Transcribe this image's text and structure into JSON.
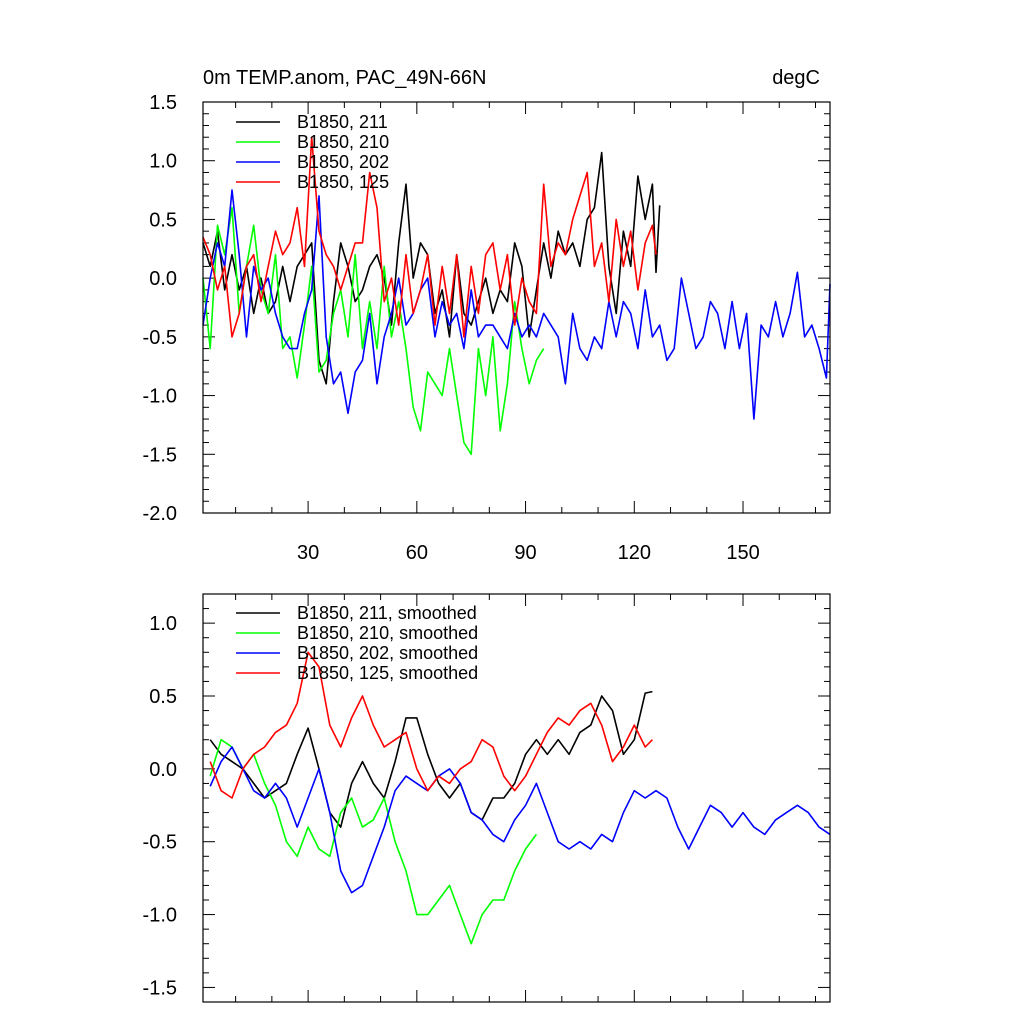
{
  "chart_data": [
    {
      "type": "line",
      "title": "0m TEMP.anom, PAC_49N-66N",
      "units": "degC",
      "xlabel": "",
      "ylabel": "",
      "xlim": [
        1,
        174
      ],
      "ylim": [
        -2.0,
        1.5
      ],
      "xticks": [
        30,
        60,
        90,
        120,
        150
      ],
      "xtick_labels": [
        "30",
        "60",
        "90",
        "120",
        "150"
      ],
      "yticks": [
        -2.0,
        -1.5,
        -1.0,
        -0.5,
        0.0,
        0.5,
        1.0,
        1.5
      ],
      "ytick_labels": [
        "-2.0",
        "-1.5",
        "-1.0",
        "-0.5",
        "0.0",
        "0.5",
        "1.0",
        "1.5"
      ],
      "legend_position": "top-left",
      "series": [
        {
          "name": "B1850, 211",
          "color": "#000000",
          "x": [
            1,
            3,
            5,
            7,
            9,
            11,
            13,
            15,
            17,
            19,
            21,
            23,
            25,
            27,
            29,
            31,
            33,
            35,
            37,
            39,
            41,
            43,
            45,
            47,
            49,
            51,
            53,
            55,
            57,
            59,
            61,
            63,
            65,
            67,
            69,
            71,
            73,
            75,
            77,
            79,
            81,
            83,
            85,
            87,
            89,
            91,
            93,
            95,
            97,
            99,
            101,
            103,
            105,
            107,
            109,
            111,
            113,
            115,
            117,
            119,
            121,
            123,
            125,
            126,
            127
          ],
          "values": [
            0.3,
            0.1,
            0.4,
            -0.1,
            0.2,
            -0.1,
            0.1,
            -0.3,
            0.0,
            -0.3,
            -0.2,
            0.1,
            -0.2,
            0.1,
            0.2,
            0.3,
            -0.7,
            -0.9,
            -0.2,
            0.3,
            0.1,
            -0.2,
            -0.1,
            0.1,
            0.2,
            0.0,
            -0.4,
            0.3,
            0.8,
            0.0,
            0.3,
            0.2,
            -0.3,
            -0.1,
            -0.5,
            0.2,
            -0.3,
            -0.4,
            -0.2,
            0.0,
            -0.3,
            -0.1,
            -0.2,
            0.3,
            0.1,
            -0.5,
            -0.1,
            0.3,
            0.0,
            0.4,
            0.2,
            0.3,
            0.1,
            0.5,
            0.6,
            1.07,
            0.1,
            -0.3,
            0.4,
            0.1,
            0.87,
            0.5,
            0.8,
            0.05,
            0.62
          ]
        },
        {
          "name": "B1850, 210",
          "color": "#00ff00",
          "x": [
            1,
            3,
            5,
            7,
            9,
            11,
            13,
            15,
            17,
            19,
            21,
            23,
            25,
            27,
            29,
            31,
            33,
            35,
            37,
            39,
            41,
            43,
            45,
            47,
            49,
            51,
            53,
            55,
            57,
            59,
            61,
            63,
            65,
            67,
            69,
            71,
            73,
            75,
            77,
            79,
            81,
            83,
            85,
            87,
            89,
            91,
            93,
            95
          ],
          "values": [
            0.0,
            -0.6,
            0.45,
            0.2,
            0.6,
            -0.3,
            0.1,
            0.45,
            -0.1,
            -0.3,
            0.2,
            -0.6,
            -0.5,
            -0.85,
            -0.4,
            0.1,
            -0.8,
            -0.7,
            -0.3,
            -0.1,
            -0.5,
            0.2,
            -0.6,
            -0.2,
            -0.6,
            0.1,
            -0.5,
            -0.2,
            -0.6,
            -1.1,
            -1.3,
            -0.8,
            -0.9,
            -1.0,
            -0.6,
            -1.0,
            -1.4,
            -1.5,
            -0.6,
            -1.0,
            -0.5,
            -1.3,
            -0.9,
            -0.2,
            -0.6,
            -0.9,
            -0.7,
            -0.6
          ]
        },
        {
          "name": "B1850, 202",
          "color": "#0000ff",
          "x": [
            1,
            3,
            5,
            7,
            9,
            11,
            13,
            15,
            17,
            19,
            21,
            23,
            25,
            27,
            29,
            31,
            33,
            35,
            37,
            39,
            41,
            43,
            45,
            47,
            49,
            51,
            53,
            55,
            57,
            59,
            61,
            63,
            65,
            67,
            69,
            71,
            73,
            75,
            77,
            79,
            81,
            83,
            85,
            87,
            89,
            91,
            93,
            95,
            97,
            99,
            101,
            103,
            105,
            107,
            109,
            111,
            113,
            115,
            117,
            119,
            121,
            123,
            125,
            127,
            129,
            131,
            133,
            135,
            137,
            139,
            141,
            143,
            145,
            147,
            149,
            151,
            153,
            155,
            157,
            159,
            161,
            163,
            165,
            167,
            169,
            171,
            173,
            174
          ],
          "values": [
            -0.4,
            0.0,
            0.3,
            0.1,
            0.75,
            0.2,
            -0.5,
            0.1,
            -0.1,
            0.0,
            -0.3,
            -0.5,
            -0.6,
            -0.6,
            -0.3,
            -0.1,
            0.7,
            -0.5,
            -0.9,
            -0.8,
            -1.15,
            -0.8,
            -0.7,
            -0.3,
            -0.9,
            -0.5,
            -0.3,
            0.0,
            -0.4,
            -0.3,
            -0.1,
            0.0,
            -0.5,
            -0.2,
            -0.4,
            -0.3,
            -0.6,
            -0.1,
            -0.5,
            -0.4,
            -0.4,
            -0.5,
            -0.6,
            -0.3,
            -0.5,
            -0.4,
            -0.5,
            -0.3,
            -0.4,
            -0.5,
            -0.9,
            -0.3,
            -0.6,
            -0.7,
            -0.5,
            -0.6,
            -0.2,
            -0.5,
            -0.2,
            -0.3,
            -0.6,
            -0.1,
            -0.5,
            -0.4,
            -0.7,
            -0.6,
            0.0,
            -0.3,
            -0.6,
            -0.5,
            -0.2,
            -0.3,
            -0.6,
            -0.2,
            -0.6,
            -0.3,
            -1.2,
            -0.4,
            -0.5,
            -0.2,
            -0.5,
            -0.3,
            0.05,
            -0.5,
            -0.4,
            -0.6,
            -0.85,
            -0.05
          ]
        },
        {
          "name": "B1850, 125",
          "color": "#ff0000",
          "x": [
            1,
            3,
            5,
            7,
            9,
            11,
            13,
            15,
            17,
            19,
            21,
            23,
            25,
            27,
            29,
            31,
            33,
            35,
            37,
            39,
            41,
            43,
            45,
            47,
            49,
            51,
            53,
            55,
            57,
            59,
            61,
            63,
            65,
            67,
            69,
            71,
            73,
            75,
            77,
            79,
            81,
            83,
            85,
            87,
            89,
            91,
            93,
            95,
            97,
            99,
            101,
            103,
            105,
            107,
            109,
            111,
            113,
            115,
            117,
            119,
            121,
            123,
            125,
            126
          ],
          "values": [
            0.35,
            0.2,
            -0.1,
            0.1,
            -0.5,
            -0.3,
            0.1,
            0.2,
            -0.2,
            0.1,
            0.4,
            0.2,
            0.3,
            0.6,
            0.1,
            1.2,
            0.4,
            0.2,
            0.1,
            -0.1,
            0.1,
            0.3,
            0.3,
            0.9,
            0.6,
            -0.2,
            0.0,
            -0.4,
            0.2,
            -0.3,
            -0.1,
            0.2,
            -0.4,
            0.1,
            -0.3,
            0.2,
            -0.5,
            0.1,
            -0.3,
            0.2,
            0.3,
            -0.1,
            0.2,
            -0.4,
            0.0,
            -0.2,
            -0.3,
            0.8,
            0.1,
            0.3,
            0.2,
            0.5,
            0.7,
            0.9,
            0.1,
            0.3,
            -0.2,
            0.5,
            0.1,
            0.4,
            -0.1,
            0.3,
            0.45,
            0.2
          ]
        }
      ]
    },
    {
      "type": "line",
      "title": "",
      "xlabel": "",
      "ylabel": "",
      "xlim": [
        1,
        174
      ],
      "ylim": [
        -1.6,
        1.2
      ],
      "xticks": [
        30,
        60,
        90,
        120,
        150
      ],
      "yticks": [
        -1.5,
        -1.0,
        -0.5,
        0.0,
        0.5,
        1.0
      ],
      "ytick_labels": [
        "-1.5",
        "-1.0",
        "-0.5",
        "0.0",
        "0.5",
        "1.0"
      ],
      "legend_position": "top-left",
      "series": [
        {
          "name": "B1850, 211, smoothed",
          "color": "#000000",
          "x": [
            3,
            6,
            9,
            12,
            15,
            18,
            21,
            24,
            27,
            30,
            33,
            36,
            39,
            42,
            45,
            48,
            51,
            54,
            57,
            60,
            63,
            66,
            69,
            72,
            75,
            78,
            81,
            84,
            87,
            90,
            93,
            96,
            99,
            102,
            105,
            108,
            111,
            114,
            117,
            120,
            123,
            125
          ],
          "values": [
            0.2,
            0.1,
            0.05,
            0.0,
            -0.1,
            -0.2,
            -0.15,
            -0.1,
            0.1,
            0.28,
            0.0,
            -0.3,
            -0.4,
            -0.1,
            0.05,
            -0.1,
            -0.2,
            0.05,
            0.35,
            0.35,
            0.1,
            -0.1,
            -0.2,
            -0.1,
            -0.3,
            -0.35,
            -0.2,
            -0.2,
            -0.1,
            0.1,
            0.2,
            0.1,
            0.2,
            0.1,
            0.25,
            0.3,
            0.5,
            0.4,
            0.1,
            0.2,
            0.52,
            0.53
          ]
        },
        {
          "name": "B1850, 210, smoothed",
          "color": "#00ff00",
          "x": [
            3,
            6,
            9,
            12,
            15,
            18,
            21,
            24,
            27,
            30,
            33,
            36,
            39,
            42,
            45,
            48,
            51,
            54,
            57,
            60,
            63,
            66,
            69,
            72,
            75,
            78,
            81,
            84,
            87,
            90,
            93
          ],
          "values": [
            -0.05,
            0.2,
            0.15,
            0.0,
            0.1,
            -0.1,
            -0.25,
            -0.5,
            -0.6,
            -0.4,
            -0.55,
            -0.6,
            -0.3,
            -0.2,
            -0.4,
            -0.35,
            -0.2,
            -0.5,
            -0.7,
            -1.0,
            -1.0,
            -0.9,
            -0.8,
            -1.0,
            -1.2,
            -1.0,
            -0.9,
            -0.9,
            -0.7,
            -0.55,
            -0.45
          ]
        },
        {
          "name": "B1850, 202, smoothed",
          "color": "#0000ff",
          "x": [
            3,
            6,
            9,
            12,
            15,
            18,
            21,
            24,
            27,
            30,
            33,
            36,
            39,
            42,
            45,
            48,
            51,
            54,
            57,
            60,
            63,
            66,
            69,
            72,
            75,
            78,
            81,
            84,
            87,
            90,
            93,
            96,
            99,
            102,
            105,
            108,
            111,
            114,
            117,
            120,
            123,
            126,
            129,
            132,
            135,
            138,
            141,
            144,
            147,
            150,
            153,
            156,
            159,
            162,
            165,
            168,
            171,
            174
          ],
          "values": [
            -0.12,
            0.05,
            0.15,
            0.0,
            -0.15,
            -0.2,
            -0.1,
            -0.2,
            -0.4,
            -0.2,
            0.0,
            -0.3,
            -0.7,
            -0.85,
            -0.8,
            -0.6,
            -0.4,
            -0.15,
            -0.05,
            -0.1,
            -0.15,
            -0.05,
            0.0,
            -0.1,
            -0.3,
            -0.35,
            -0.45,
            -0.5,
            -0.35,
            -0.25,
            -0.1,
            -0.3,
            -0.5,
            -0.55,
            -0.5,
            -0.55,
            -0.45,
            -0.5,
            -0.3,
            -0.15,
            -0.2,
            -0.15,
            -0.2,
            -0.4,
            -0.55,
            -0.4,
            -0.25,
            -0.3,
            -0.4,
            -0.3,
            -0.4,
            -0.45,
            -0.35,
            -0.3,
            -0.25,
            -0.3,
            -0.4,
            -0.45
          ]
        },
        {
          "name": "B1850, 125, smoothed",
          "color": "#ff0000",
          "x": [
            3,
            6,
            9,
            12,
            15,
            18,
            21,
            24,
            27,
            30,
            33,
            36,
            39,
            42,
            45,
            48,
            51,
            54,
            57,
            60,
            63,
            66,
            69,
            72,
            75,
            78,
            81,
            84,
            87,
            90,
            93,
            96,
            99,
            102,
            105,
            108,
            111,
            114,
            117,
            120,
            123,
            125
          ],
          "values": [
            0.05,
            -0.15,
            -0.2,
            0.0,
            0.1,
            0.15,
            0.25,
            0.3,
            0.45,
            0.8,
            0.7,
            0.3,
            0.15,
            0.35,
            0.5,
            0.3,
            0.15,
            0.2,
            0.25,
            0.0,
            -0.15,
            -0.05,
            -0.1,
            0.0,
            0.05,
            0.2,
            0.15,
            -0.05,
            -0.15,
            -0.05,
            0.1,
            0.25,
            0.35,
            0.3,
            0.4,
            0.45,
            0.3,
            0.05,
            0.15,
            0.3,
            0.15,
            0.2
          ]
        }
      ]
    }
  ]
}
